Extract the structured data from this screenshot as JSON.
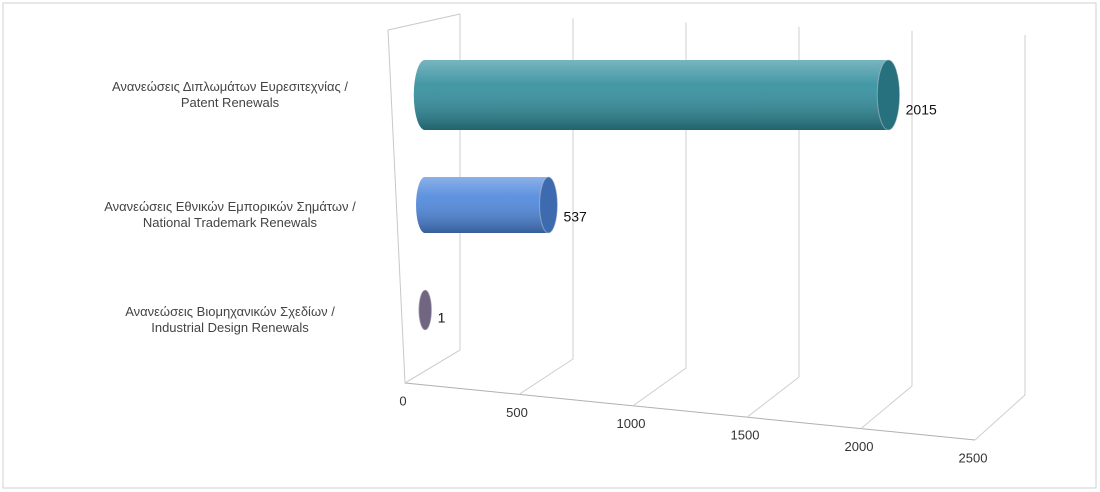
{
  "chart_data": {
    "type": "bar3d",
    "categories": [
      "Ανανεώσεις Διπλωμάτων Ευρεσιτεχνίας /\nPatent Renewals",
      "Ανανεώσεις Εθνικών Εμπορικών Σημάτων /\nNational Trademark Renewals",
      "Ανανεώσεις Βιομηχανικών Σχεδίων  /\nIndustrial Design Renewals"
    ],
    "values": [
      2015,
      537,
      1
    ],
    "colors": [
      "#2f8d9c",
      "#4d86dc",
      "#8c7fa3"
    ],
    "xlim": [
      0,
      2500
    ],
    "xticks": [
      0,
      500,
      1000,
      1500,
      2000,
      2500
    ],
    "grid": true
  }
}
